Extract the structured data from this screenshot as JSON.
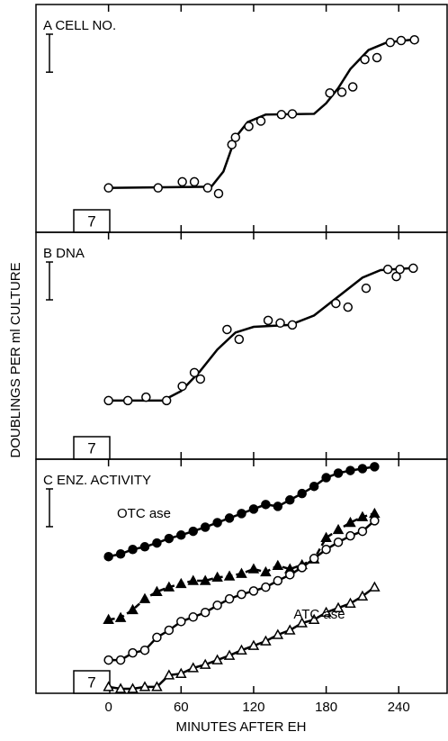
{
  "chart_data": [
    {
      "type": "scatter",
      "panel_label": "A  CELL NO.",
      "box_label": "7",
      "ylabel": "DOUBLINGS PER ml CULTURE",
      "marker": "open-circle",
      "color": "#000000",
      "x": [
        0,
        41,
        61,
        71,
        82,
        91,
        102,
        105,
        116,
        126,
        143,
        152,
        183,
        193,
        202,
        212,
        222,
        233,
        242,
        253
      ],
      "values": [
        1.17,
        1.17,
        1.33,
        1.33,
        1.17,
        1.02,
        2.31,
        2.5,
        2.79,
        2.93,
        3.1,
        3.12,
        3.67,
        3.69,
        3.83,
        4.55,
        4.6,
        5.0,
        5.05,
        5.07
      ],
      "fit_x": [
        0,
        85,
        95,
        105,
        115,
        130,
        170,
        180,
        190,
        200,
        215,
        230,
        250
      ],
      "fit_values": [
        1.17,
        1.2,
        1.6,
        2.5,
        2.9,
        3.1,
        3.12,
        3.4,
        3.8,
        4.3,
        4.8,
        5.0,
        5.07
      ],
      "xlim": [
        -60,
        280
      ],
      "xticks": [
        0,
        60,
        120,
        180,
        240
      ],
      "ylim": [
        0,
        6
      ]
    },
    {
      "type": "scatter",
      "panel_label": "B  DNA",
      "box_label": "7",
      "marker": "open-circle",
      "color": "#000000",
      "x": [
        0,
        16,
        31,
        48,
        61,
        71,
        76,
        98,
        108,
        132,
        142,
        152,
        188,
        198,
        213,
        231,
        241,
        238,
        252
      ],
      "values": [
        1.55,
        1.55,
        1.64,
        1.55,
        1.93,
        2.29,
        2.12,
        3.43,
        3.17,
        3.67,
        3.6,
        3.55,
        4.12,
        4.02,
        4.52,
        5.02,
        5.02,
        4.83,
        5.05
      ],
      "fit_x": [
        0,
        45,
        60,
        75,
        90,
        105,
        120,
        150,
        170,
        190,
        210,
        225,
        250
      ],
      "fit_values": [
        1.55,
        1.55,
        1.8,
        2.3,
        2.9,
        3.35,
        3.5,
        3.55,
        3.8,
        4.3,
        4.8,
        5.0,
        5.05
      ],
      "xlim": [
        -60,
        280
      ],
      "xticks": [
        0,
        60,
        120,
        180,
        240
      ],
      "ylim": [
        0,
        6
      ]
    },
    {
      "type": "scatter",
      "panel_label": "C  ENZ. ACTIVITY",
      "box_label": "7",
      "xlabel": "MINUTES AFTER EH",
      "annotations": [
        "OTC ase",
        "ATC ase"
      ],
      "x": [
        0,
        10,
        20,
        30,
        40,
        50,
        60,
        70,
        80,
        90,
        100,
        110,
        120,
        130,
        140,
        150,
        160,
        170,
        180,
        190,
        200,
        210,
        220
      ],
      "series": [
        {
          "marker": "filled-circle",
          "line": "solid",
          "color": "#000000",
          "values": [
            3.62,
            3.69,
            3.81,
            3.88,
            3.98,
            4.1,
            4.19,
            4.29,
            4.4,
            4.52,
            4.64,
            4.76,
            4.88,
            5.0,
            4.95,
            5.12,
            5.29,
            5.48,
            5.71,
            5.83,
            5.9,
            5.95,
            6.0
          ]
        },
        {
          "marker": "filled-triangle",
          "line": "dashed",
          "color": "#000000",
          "values": [
            1.95,
            2.0,
            2.21,
            2.5,
            2.69,
            2.81,
            2.9,
            2.98,
            2.98,
            3.07,
            3.1,
            3.17,
            3.29,
            3.21,
            3.38,
            3.29,
            3.4,
            3.55,
            4.12,
            4.33,
            4.52,
            4.67,
            4.76
          ]
        },
        {
          "marker": "open-circle",
          "line": "solid",
          "color": "#000000",
          "values": [
            0.88,
            0.88,
            1.07,
            1.14,
            1.48,
            1.67,
            1.9,
            2.02,
            2.14,
            2.33,
            2.5,
            2.62,
            2.71,
            2.81,
            2.98,
            3.14,
            3.33,
            3.57,
            3.81,
            4.0,
            4.17,
            4.29,
            4.57
          ]
        },
        {
          "marker": "open-triangle",
          "line": "solid",
          "color": "#000000",
          "values": [
            0.17,
            0.12,
            0.12,
            0.17,
            0.17,
            0.48,
            0.52,
            0.67,
            0.76,
            0.88,
            1.0,
            1.14,
            1.26,
            1.38,
            1.55,
            1.67,
            1.86,
            1.95,
            2.14,
            2.26,
            2.38,
            2.57,
            2.81
          ]
        }
      ],
      "xlim": [
        -60,
        280
      ],
      "xticks": [
        0,
        60,
        120,
        180,
        240
      ],
      "ylim": [
        0,
        6.2
      ]
    }
  ]
}
